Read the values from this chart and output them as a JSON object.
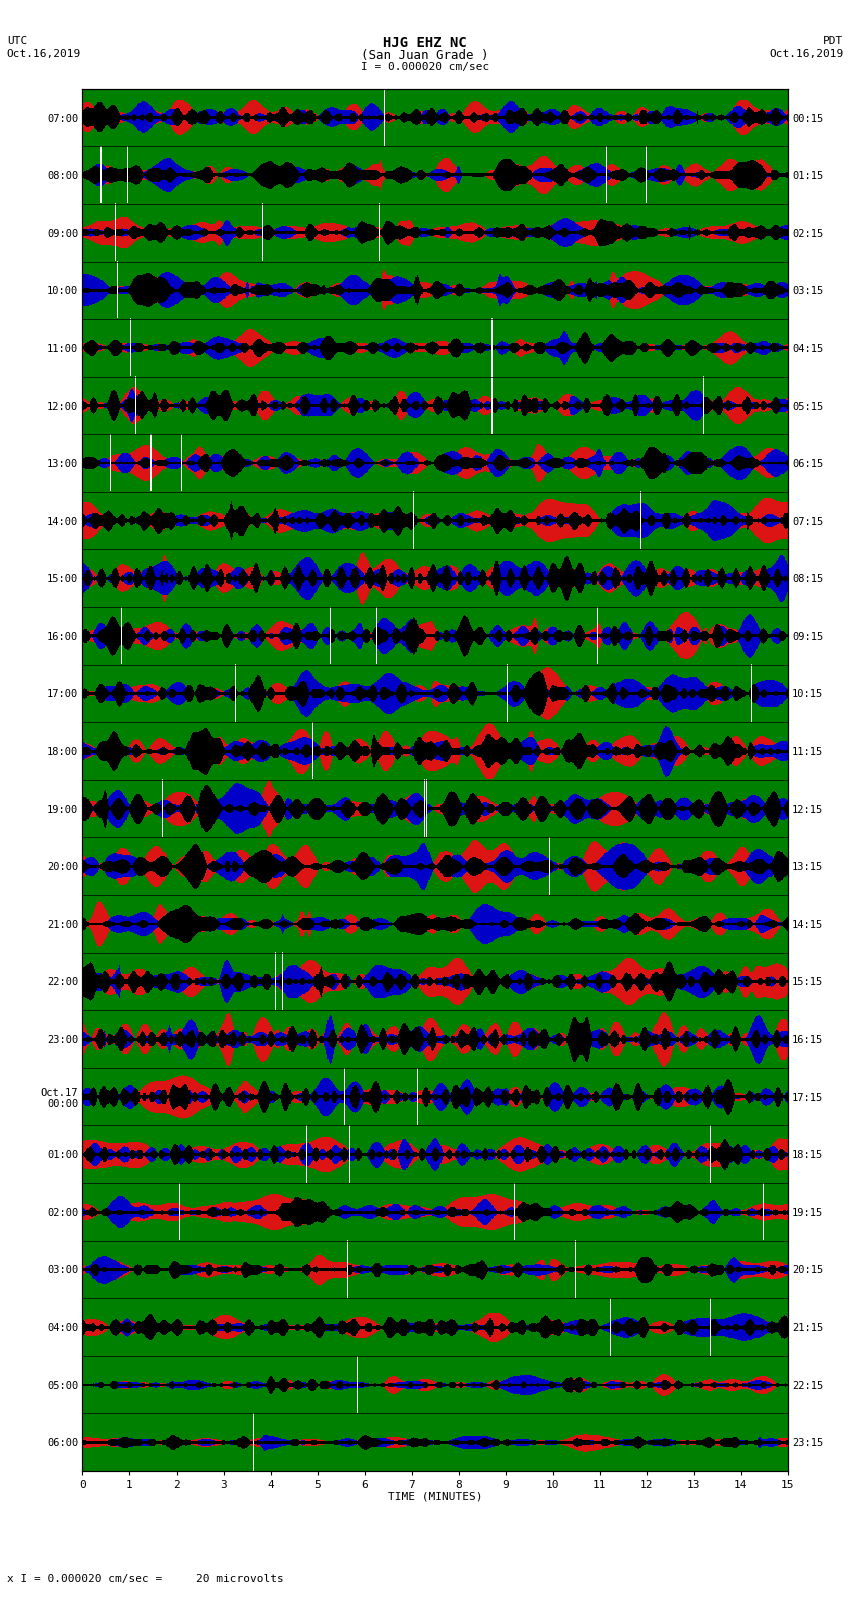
{
  "title_line1": "HJG EHZ NC",
  "title_line2": "(San Juan Grade )",
  "title_line3": "I = 0.000020 cm/sec",
  "left_header_line1": "UTC",
  "left_header_line2": "Oct.16,2019",
  "right_header_line1": "PDT",
  "right_header_line2": "Oct.16,2019",
  "left_yticks": [
    "07:00",
    "08:00",
    "09:00",
    "10:00",
    "11:00",
    "12:00",
    "13:00",
    "14:00",
    "15:00",
    "16:00",
    "17:00",
    "18:00",
    "19:00",
    "20:00",
    "21:00",
    "22:00",
    "23:00",
    "Oct.17\n00:00",
    "01:00",
    "02:00",
    "03:00",
    "04:00",
    "05:00",
    "06:00"
  ],
  "right_yticks": [
    "00:15",
    "01:15",
    "02:15",
    "03:15",
    "04:15",
    "05:15",
    "06:15",
    "07:15",
    "08:15",
    "09:15",
    "10:15",
    "11:15",
    "12:15",
    "13:15",
    "14:15",
    "15:15",
    "16:15",
    "17:15",
    "18:15",
    "19:15",
    "20:15",
    "21:15",
    "22:15",
    "23:15"
  ],
  "xlabel": "TIME (MINUTES)",
  "xtick_labels": [
    "0",
    "1",
    "2",
    "3",
    "4",
    "5",
    "6",
    "7",
    "8",
    "9",
    "10",
    "11",
    "12",
    "13",
    "14",
    "15"
  ],
  "footnote": "x I = 0.000020 cm/sec =     20 microvolts",
  "n_rows": 24,
  "n_cols": 15,
  "bg_color": "#ffffff"
}
